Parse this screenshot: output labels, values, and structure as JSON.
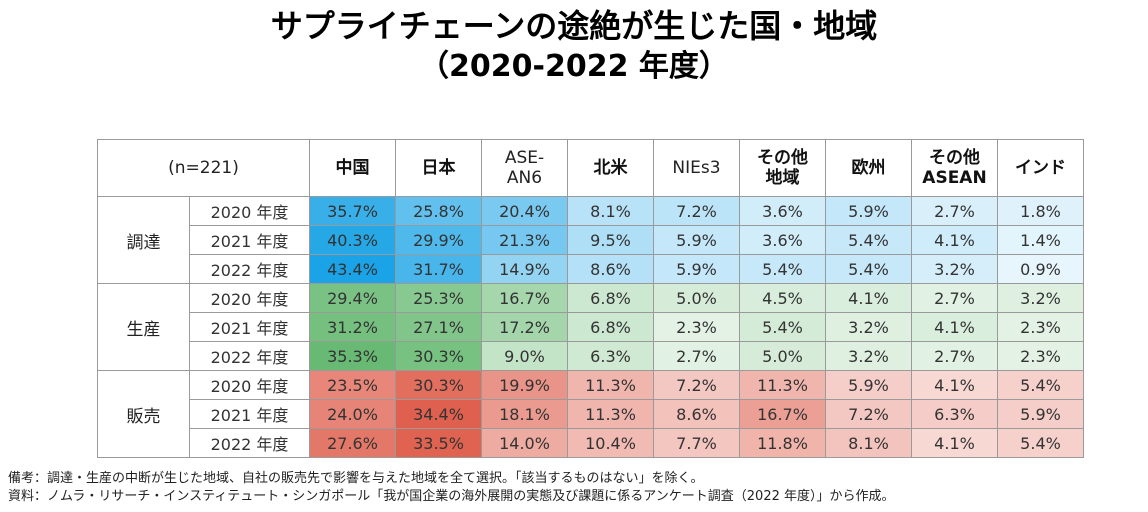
{
  "title_line1": "サプライチェーンの途絶が生じた国・地域",
  "title_line2": "（2020-2022 年度）",
  "notes": [
    "備考：調達・生産の中断が生じた地域、自社の販売先で影響を与えた地域を全て選択。「該当するものはない」を除く。",
    "資料：ノムラ・リサーチ・インスティテュート・シンガポール「我が国企業の海外展開の実態及び課題に係るアンケート調査（2022 年度）」から作成。"
  ],
  "colors": {
    "調達": "#1aa3e6",
    "生産": "#4fae5c",
    "販売": "#d9432e"
  },
  "chart_data": {
    "type": "table",
    "header_label": "(n=221)",
    "columns": [
      "中国",
      "日本",
      "ASE-AN6",
      "北米",
      "NIEs3",
      "その他地域",
      "欧州",
      "その他ASEAN",
      "インド"
    ],
    "column_display": [
      [
        "中国"
      ],
      [
        "日本"
      ],
      [
        "ASE-",
        "AN6"
      ],
      [
        "北米"
      ],
      [
        "NIEs3"
      ],
      [
        "その他",
        "地域"
      ],
      [
        "欧州"
      ],
      [
        "その他",
        "ASEAN"
      ],
      [
        "インド"
      ]
    ],
    "bold_columns": [
      0,
      1,
      3,
      5,
      6,
      7,
      8
    ],
    "unit": "%",
    "groups": [
      {
        "name": "調達",
        "rows": [
          {
            "year": "2020 年度",
            "values": [
              35.7,
              25.8,
              20.4,
              8.1,
              7.2,
              3.6,
              5.9,
              2.7,
              1.8
            ]
          },
          {
            "year": "2021 年度",
            "values": [
              40.3,
              29.9,
              21.3,
              9.5,
              5.9,
              3.6,
              5.4,
              4.1,
              1.4
            ]
          },
          {
            "year": "2022 年度",
            "values": [
              43.4,
              31.7,
              14.9,
              8.6,
              5.9,
              5.4,
              5.4,
              3.2,
              0.9
            ]
          }
        ]
      },
      {
        "name": "生産",
        "rows": [
          {
            "year": "2020 年度",
            "values": [
              29.4,
              25.3,
              16.7,
              6.8,
              5.0,
              4.5,
              4.1,
              2.7,
              3.2
            ]
          },
          {
            "year": "2021 年度",
            "values": [
              31.2,
              27.1,
              17.2,
              6.8,
              2.3,
              5.4,
              3.2,
              4.1,
              2.3
            ]
          },
          {
            "year": "2022 年度",
            "values": [
              35.3,
              30.3,
              9.0,
              6.3,
              2.7,
              5.0,
              3.2,
              2.7,
              2.3
            ]
          }
        ]
      },
      {
        "name": "販売",
        "rows": [
          {
            "year": "2020 年度",
            "values": [
              23.5,
              30.3,
              19.9,
              11.3,
              7.2,
              11.3,
              5.9,
              4.1,
              5.4
            ]
          },
          {
            "year": "2021 年度",
            "values": [
              24.0,
              34.4,
              18.1,
              11.3,
              8.6,
              16.7,
              7.2,
              6.3,
              5.9
            ]
          },
          {
            "year": "2022 年度",
            "values": [
              27.6,
              33.5,
              14.0,
              10.4,
              7.7,
              11.8,
              8.1,
              4.1,
              5.4
            ]
          }
        ]
      }
    ]
  }
}
